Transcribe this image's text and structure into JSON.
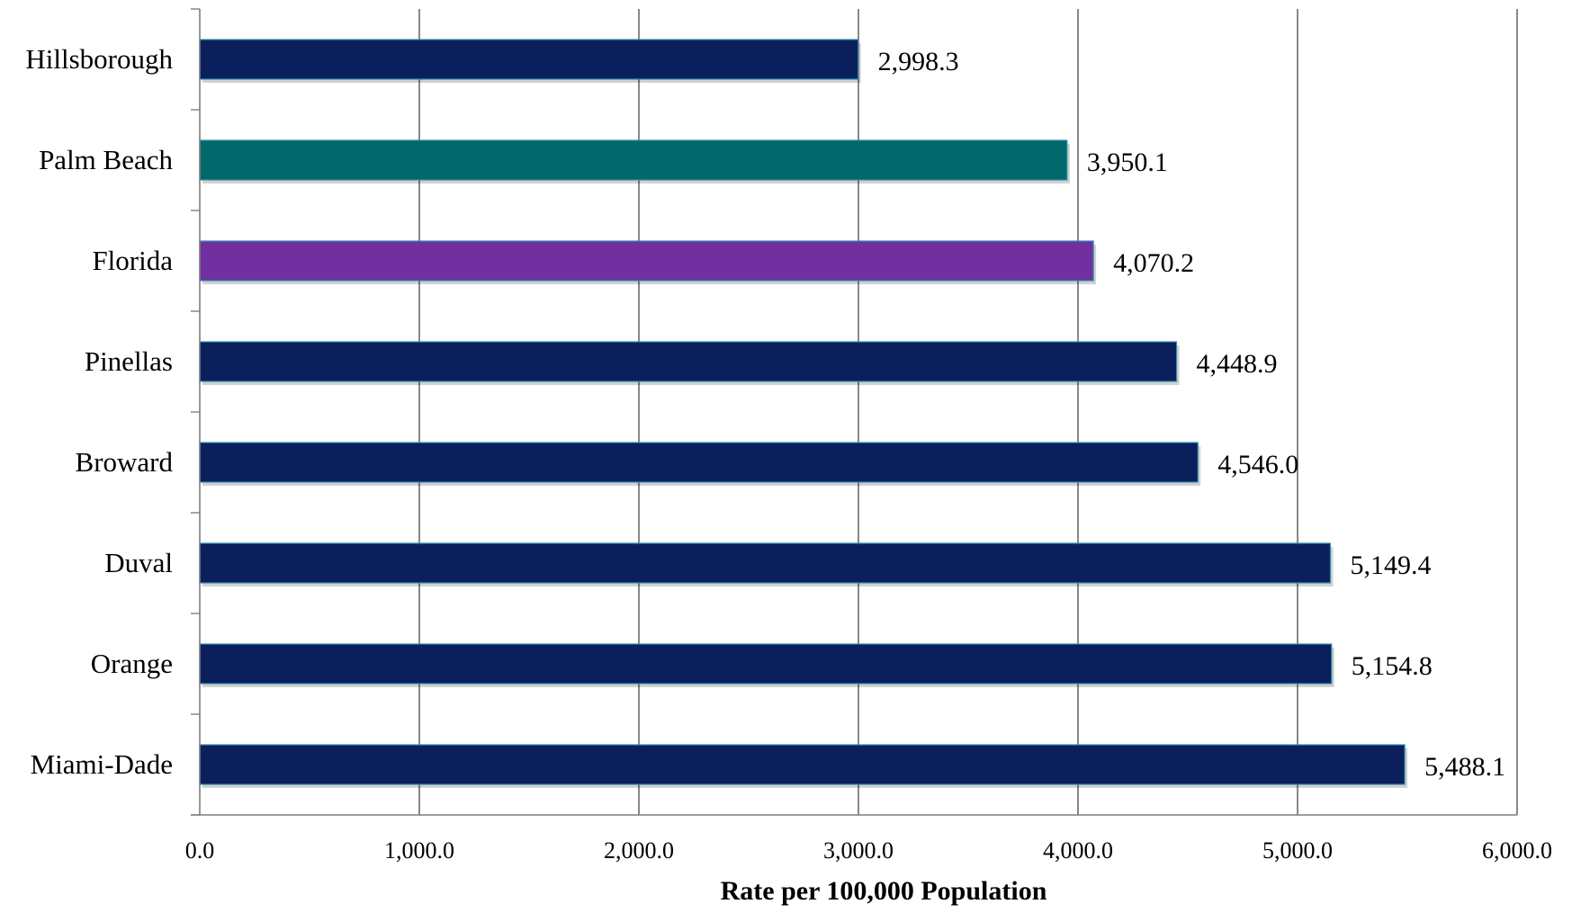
{
  "chart_data": {
    "type": "bar",
    "orientation": "horizontal",
    "title": "",
    "xlabel": "Rate per 100,000 Population",
    "ylabel": "",
    "xlim": [
      0,
      6000
    ],
    "x_ticks": [
      0,
      1000,
      2000,
      3000,
      4000,
      5000,
      6000
    ],
    "x_tick_labels": [
      "0.0",
      "1,000.0",
      "2,000.0",
      "3,000.0",
      "4,000.0",
      "5,000.0",
      "6,000.0"
    ],
    "grid": true,
    "legend": "none",
    "categories": [
      "Hillsborough",
      "Palm Beach",
      "Florida",
      "Pinellas",
      "Broward",
      "Duval",
      "Orange",
      "Miami-Dade"
    ],
    "values": [
      2998.3,
      3950.1,
      4070.2,
      4448.9,
      4546.0,
      5149.4,
      5154.8,
      5488.1
    ],
    "value_labels": [
      "2,998.3",
      "3,950.1",
      "4,070.2",
      "4,448.9",
      "4,546.0",
      "5,149.4",
      "5,154.8",
      "5,488.1"
    ],
    "bar_colors": [
      "#0b1f5c",
      "#00686a",
      "#7030a0",
      "#0b1f5c",
      "#0b1f5c",
      "#0b1f5c",
      "#0b1f5c",
      "#0b1f5c"
    ]
  },
  "colors": {
    "default_bar": "#0b1f5c",
    "highlight_palm_beach": "#00686a",
    "highlight_florida": "#7030a0",
    "gridline": "#6b6b6b"
  }
}
